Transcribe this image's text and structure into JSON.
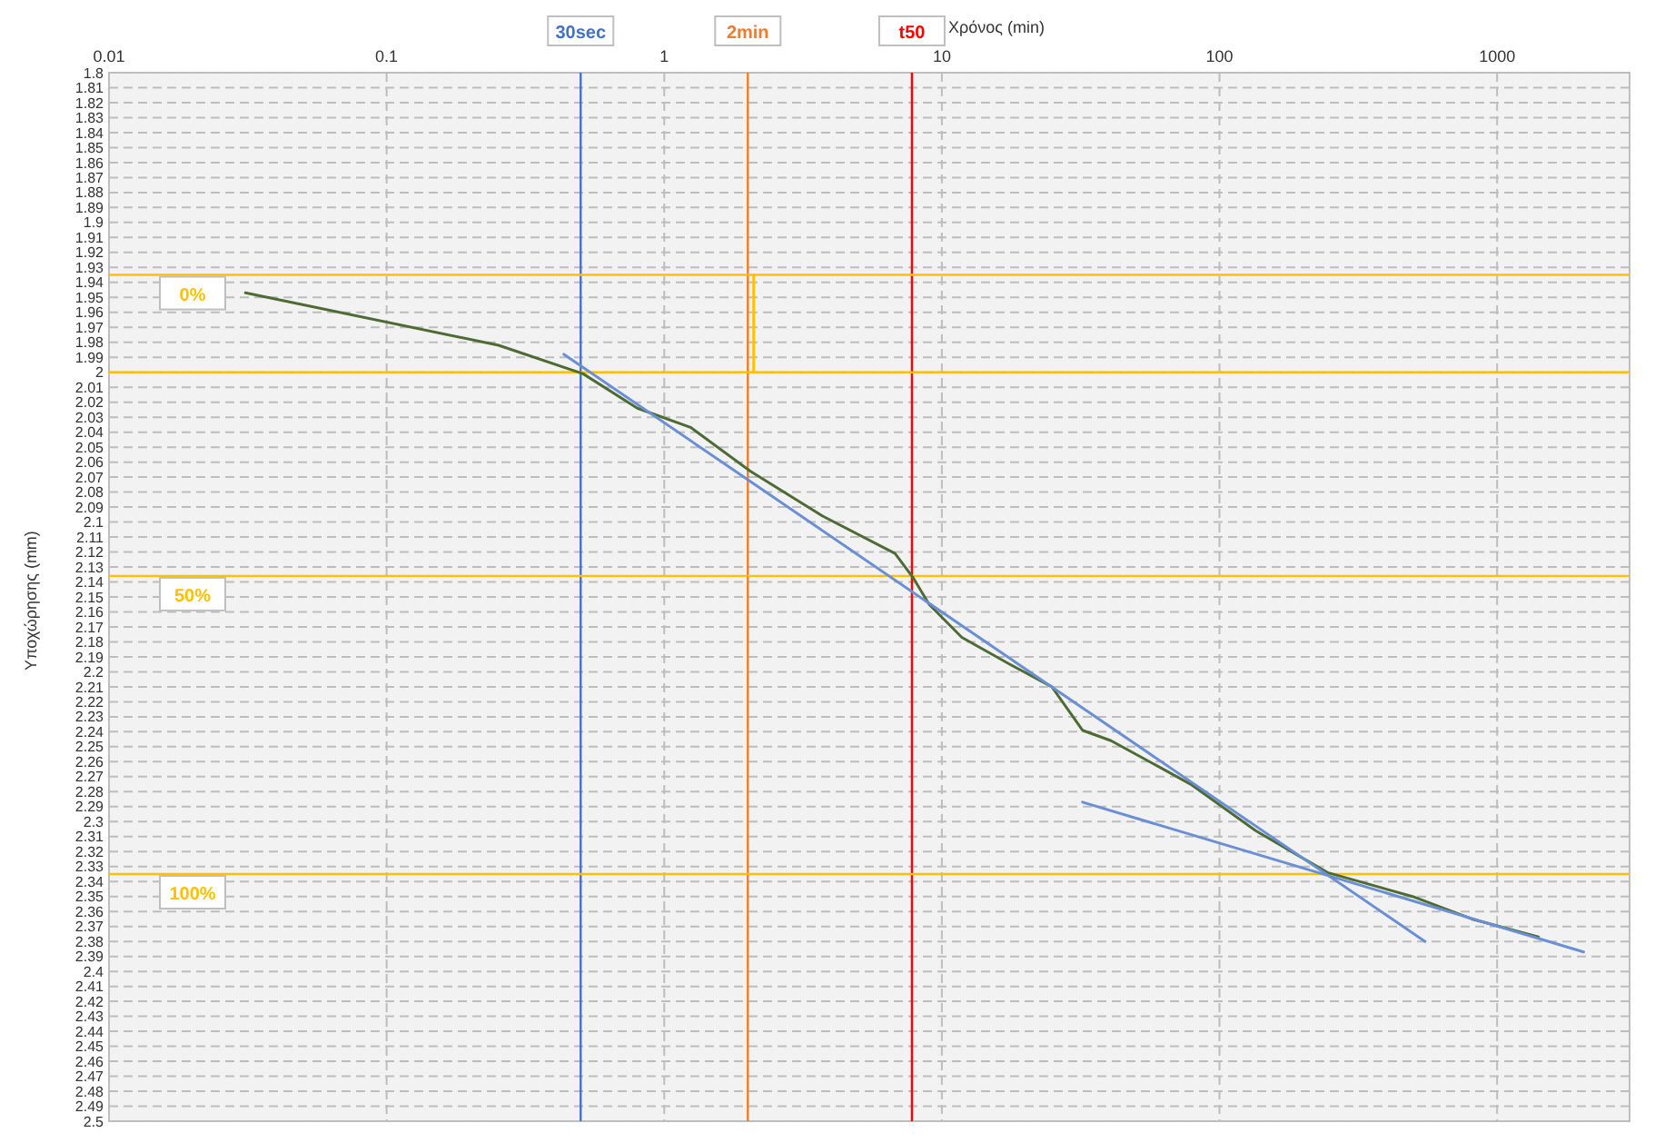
{
  "chart_data": {
    "type": "line",
    "xlabel": "Χρόνος (min)",
    "ylabel": "Υποχώρησης (mm)",
    "log": "x",
    "xlim": [
      0.01,
      3000
    ],
    "xticks": [
      0.01,
      0.1,
      1,
      10,
      100,
      1000
    ],
    "ylim": [
      2.5,
      1.8
    ],
    "yticks": [
      1.8,
      1.81,
      1.82,
      1.83,
      1.84,
      1.85,
      1.86,
      1.87,
      1.88,
      1.89,
      1.9,
      1.91,
      1.92,
      1.93,
      1.94,
      1.95,
      1.96,
      1.97,
      1.98,
      1.99,
      2,
      2.01,
      2.02,
      2.03,
      2.04,
      2.05,
      2.06,
      2.07,
      2.08,
      2.09,
      2.1,
      2.11,
      2.12,
      2.13,
      2.14,
      2.15,
      2.16,
      2.17,
      2.18,
      2.19,
      2.2,
      2.21,
      2.22,
      2.23,
      2.24,
      2.25,
      2.26,
      2.27,
      2.28,
      2.29,
      2.3,
      2.31,
      2.32,
      2.33,
      2.34,
      2.35,
      2.36,
      2.37,
      2.38,
      2.39,
      2.4,
      2.41,
      2.42,
      2.43,
      2.44,
      2.45,
      2.46,
      2.47,
      2.48,
      2.49,
      2.5
    ],
    "grid": true,
    "series": [
      {
        "color": "#4e6b35",
        "x": [
          0.031,
          0.253,
          0.51,
          0.8,
          1.25,
          2.04,
          3.72,
          6.78,
          7.87,
          9.0,
          11.8,
          17.6,
          24.9,
          32.1,
          40.7,
          78.7,
          135,
          245,
          496,
          811,
          1409
        ],
        "values": [
          1.947,
          1.982,
          2.001,
          2.024,
          2.037,
          2.066,
          2.096,
          2.121,
          2.137,
          2.155,
          2.177,
          2.195,
          2.21,
          2.239,
          2.246,
          2.275,
          2.306,
          2.334,
          2.35,
          2.365,
          2.377
        ]
      },
      {
        "color": "#6a8fd4",
        "x": [
          0.435,
          550
        ],
        "values": [
          1.988,
          2.38
        ]
      },
      {
        "color": "#6a8fd4",
        "x": [
          32.1,
          2050
        ],
        "values": [
          2.287,
          2.387
        ]
      },
      {
        "color": "#ffc000",
        "x": [
          2.1,
          2.1
        ],
        "values": [
          1.935,
          2.0
        ]
      }
    ],
    "ref_lines": [
      {
        "axis": "x",
        "value": 0.5,
        "label": "30sec",
        "color": "#4472c4"
      },
      {
        "axis": "x",
        "value": 2,
        "label": "2min",
        "color": "#ed7d31"
      },
      {
        "axis": "x",
        "value": 7.8,
        "label": "t50",
        "color": "#ff0000"
      },
      {
        "axis": "y",
        "value": 1.935,
        "label": null,
        "color": "#ffc000"
      },
      {
        "axis": "y",
        "value": 2.0,
        "label": null,
        "color": "#ffc000"
      },
      {
        "axis": "y",
        "value": 2.136,
        "label": null,
        "color": "#ffc000"
      },
      {
        "axis": "y",
        "value": 2.335,
        "label": null,
        "color": "#ffc000"
      }
    ],
    "annotations": [
      {
        "text": "0%",
        "y": 1.935
      },
      {
        "text": "50%",
        "y": 2.136
      },
      {
        "text": "100%",
        "y": 2.335
      }
    ]
  }
}
